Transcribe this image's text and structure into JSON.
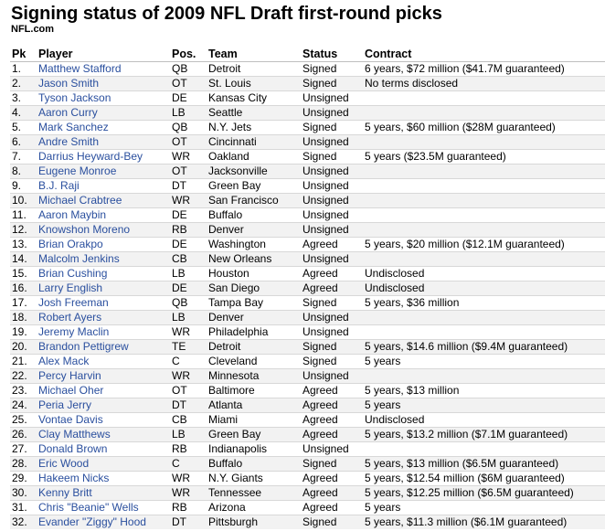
{
  "title": "Signing status of 2009 NFL Draft first-round picks",
  "source": "NFL.com",
  "columns": [
    "Pk",
    "Player",
    "Pos.",
    "Team",
    "Status",
    "Contract"
  ],
  "rows": [
    {
      "pk": "1.",
      "player": "Matthew Stafford",
      "pos": "QB",
      "team": "Detroit",
      "status": "Signed",
      "contract": "6 years, $72 million ($41.7M guaranteed)"
    },
    {
      "pk": "2.",
      "player": "Jason Smith",
      "pos": "OT",
      "team": "St. Louis",
      "status": "Signed",
      "contract": "No terms disclosed"
    },
    {
      "pk": "3.",
      "player": "Tyson Jackson",
      "pos": "DE",
      "team": "Kansas City",
      "status": "Unsigned",
      "contract": ""
    },
    {
      "pk": "4.",
      "player": "Aaron Curry",
      "pos": "LB",
      "team": "Seattle",
      "status": "Unsigned",
      "contract": ""
    },
    {
      "pk": "5.",
      "player": "Mark Sanchez",
      "pos": "QB",
      "team": "N.Y. Jets",
      "status": "Signed",
      "contract": "5 years, $60 million ($28M guaranteed)"
    },
    {
      "pk": "6.",
      "player": "Andre Smith",
      "pos": "OT",
      "team": "Cincinnati",
      "status": "Unsigned",
      "contract": ""
    },
    {
      "pk": "7.",
      "player": "Darrius Heyward-Bey",
      "pos": "WR",
      "team": "Oakland",
      "status": "Signed",
      "contract": "5 years ($23.5M guaranteed)"
    },
    {
      "pk": "8.",
      "player": "Eugene Monroe",
      "pos": "OT",
      "team": "Jacksonville",
      "status": "Unsigned",
      "contract": ""
    },
    {
      "pk": "9.",
      "player": "B.J. Raji",
      "pos": "DT",
      "team": "Green Bay",
      "status": "Unsigned",
      "contract": ""
    },
    {
      "pk": "10.",
      "player": "Michael Crabtree",
      "pos": "WR",
      "team": "San Francisco",
      "status": "Unsigned",
      "contract": ""
    },
    {
      "pk": "11.",
      "player": "Aaron Maybin",
      "pos": "DE",
      "team": "Buffalo",
      "status": "Unsigned",
      "contract": ""
    },
    {
      "pk": "12.",
      "player": "Knowshon Moreno",
      "pos": "RB",
      "team": "Denver",
      "status": "Unsigned",
      "contract": ""
    },
    {
      "pk": "13.",
      "player": "Brian Orakpo",
      "pos": "DE",
      "team": "Washington",
      "status": "Agreed",
      "contract": "5 years, $20 million ($12.1M guaranteed)"
    },
    {
      "pk": "14.",
      "player": "Malcolm Jenkins",
      "pos": "CB",
      "team": "New Orleans",
      "status": "Unsigned",
      "contract": ""
    },
    {
      "pk": "15.",
      "player": "Brian Cushing",
      "pos": "LB",
      "team": "Houston",
      "status": "Agreed",
      "contract": "Undisclosed"
    },
    {
      "pk": "16.",
      "player": "Larry English",
      "pos": "DE",
      "team": "San Diego",
      "status": "Agreed",
      "contract": "Undisclosed"
    },
    {
      "pk": "17.",
      "player": "Josh Freeman",
      "pos": "QB",
      "team": "Tampa Bay",
      "status": "Signed",
      "contract": "5 years, $36 million"
    },
    {
      "pk": "18.",
      "player": "Robert Ayers",
      "pos": "LB",
      "team": "Denver",
      "status": "Unsigned",
      "contract": ""
    },
    {
      "pk": "19.",
      "player": "Jeremy Maclin",
      "pos": "WR",
      "team": "Philadelphia",
      "status": "Unsigned",
      "contract": ""
    },
    {
      "pk": "20.",
      "player": "Brandon Pettigrew",
      "pos": "TE",
      "team": "Detroit",
      "status": "Signed",
      "contract": "5 years, $14.6 million ($9.4M guaranteed)"
    },
    {
      "pk": "21.",
      "player": "Alex Mack",
      "pos": "C",
      "team": "Cleveland",
      "status": "Signed",
      "contract": "5 years"
    },
    {
      "pk": "22.",
      "player": "Percy Harvin",
      "pos": "WR",
      "team": "Minnesota",
      "status": "Unsigned",
      "contract": ""
    },
    {
      "pk": "23.",
      "player": "Michael Oher",
      "pos": "OT",
      "team": "Baltimore",
      "status": "Agreed",
      "contract": "5 years, $13 million"
    },
    {
      "pk": "24.",
      "player": "Peria Jerry",
      "pos": "DT",
      "team": "Atlanta",
      "status": "Agreed",
      "contract": "5 years"
    },
    {
      "pk": "25.",
      "player": "Vontae Davis",
      "pos": "CB",
      "team": "Miami",
      "status": "Agreed",
      "contract": "Undisclosed"
    },
    {
      "pk": "26.",
      "player": "Clay Matthews",
      "pos": "LB",
      "team": "Green Bay",
      "status": "Agreed",
      "contract": "5 years, $13.2 million ($7.1M guaranteed)"
    },
    {
      "pk": "27.",
      "player": "Donald Brown",
      "pos": "RB",
      "team": "Indianapolis",
      "status": "Unsigned",
      "contract": ""
    },
    {
      "pk": "28.",
      "player": "Eric Wood",
      "pos": "C",
      "team": "Buffalo",
      "status": "Signed",
      "contract": "5 years, $13 million ($6.5M guaranteed)"
    },
    {
      "pk": "29.",
      "player": "Hakeem Nicks",
      "pos": "WR",
      "team": "N.Y. Giants",
      "status": "Agreed",
      "contract": "5 years, $12.54 million ($6M guaranteed)"
    },
    {
      "pk": "30.",
      "player": "Kenny Britt",
      "pos": "WR",
      "team": "Tennessee",
      "status": "Agreed",
      "contract": "5 years, $12.25 million ($6.5M guaranteed)"
    },
    {
      "pk": "31.",
      "player": "Chris \"Beanie\" Wells",
      "pos": "RB",
      "team": "Arizona",
      "status": "Agreed",
      "contract": "5 years"
    },
    {
      "pk": "32.",
      "player": "Evander \"Ziggy\" Hood",
      "pos": "DT",
      "team": "Pittsburgh",
      "status": "Signed",
      "contract": "5 years, $11.3 million ($6.1M guaranteed)"
    }
  ]
}
